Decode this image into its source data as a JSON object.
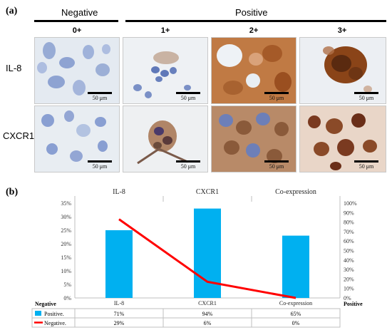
{
  "panel_a": {
    "label": "(a)",
    "group_negative": "Negative",
    "group_positive": "Positive",
    "grades": [
      "0+",
      "1+",
      "2+",
      "3+"
    ],
    "rows": [
      "IL-8",
      "CXCR1"
    ],
    "scale_bar": "50 μm",
    "colors": {
      "hematoxylin": "#7a8fc8",
      "dab": "#9a4a1c",
      "background": "#e6ecf3"
    }
  },
  "panel_b": {
    "label": "(b)",
    "table_header": "Negative",
    "right_axis_header": "Positive",
    "table_rows": [
      {
        "label": "Positive.",
        "values": [
          "71%",
          "94%",
          "65%"
        ],
        "color": "#00b0f0"
      },
      {
        "label": "Negative.",
        "values": [
          "29%",
          "6%",
          "0%"
        ],
        "color": "#ff0000"
      }
    ]
  },
  "chart_data": {
    "type": "bar",
    "categories": [
      "IL-8",
      "CXCR1",
      "Co-expression"
    ],
    "top_labels": [
      "IL-8",
      "CXCR1",
      "Co-expression"
    ],
    "bar_values": [
      25,
      33,
      23
    ],
    "left_ylim": [
      0,
      35
    ],
    "left_ticks": [
      "0%",
      "5%",
      "10%",
      "15%",
      "20%",
      "25%",
      "30%",
      "35%"
    ],
    "line_values": [
      83,
      17,
      0
    ],
    "right_ylim": [
      0,
      100
    ],
    "right_ticks": [
      "0%",
      "10%",
      "20%",
      "30%",
      "40%",
      "50%",
      "60%",
      "70%",
      "80%",
      "90%",
      "100%"
    ],
    "series": [
      {
        "name": "Positive.",
        "color": "#00b0f0",
        "kind": "bar"
      },
      {
        "name": "Negative.",
        "color": "#ff0000",
        "kind": "line"
      }
    ],
    "grid": false
  }
}
